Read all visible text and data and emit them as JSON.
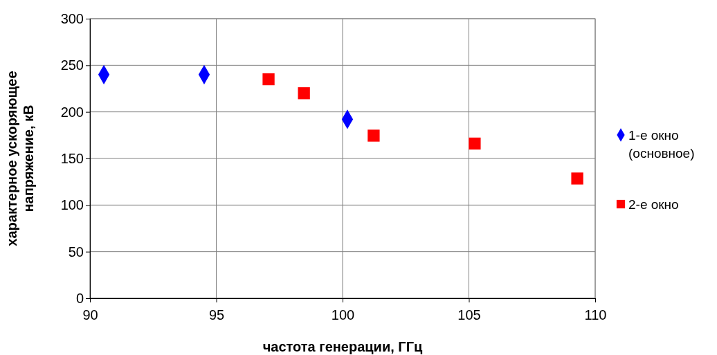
{
  "chart_data": {
    "type": "scatter",
    "xlabel": "частота генерации, ГГц",
    "ylabel": "характерное ускоряющее напряжение, кВ",
    "xlim": [
      90,
      110
    ],
    "xticks": [
      90,
      95,
      100,
      105,
      110
    ],
    "ylim": [
      0,
      300
    ],
    "yticks": [
      0,
      50,
      100,
      150,
      200,
      250,
      300
    ],
    "grid": true,
    "legend": "right",
    "series": [
      {
        "name": "1-е окно (основное)",
        "color": "#0000ff",
        "marker": "diamond",
        "x": [
          90.55,
          94.52,
          100.19
        ],
        "values": [
          240,
          240,
          192
        ]
      },
      {
        "name": "2-е окно",
        "color": "#ff0000",
        "marker": "square",
        "x": [
          97.07,
          98.47,
          101.23,
          105.23,
          109.29
        ],
        "values": [
          235,
          220,
          174.5,
          166,
          128.5
        ]
      }
    ]
  }
}
